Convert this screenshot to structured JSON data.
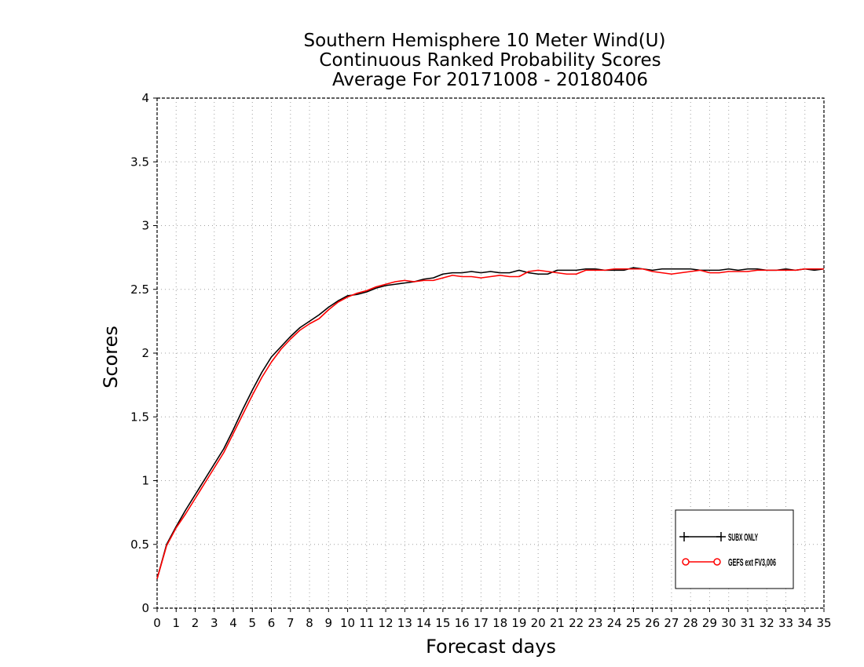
{
  "chart_data": {
    "type": "line",
    "title": [
      "Southern Hemisphere 10 Meter Wind(U)",
      "Continuous Ranked Probability Scores",
      "Average For 20171008 - 20180406"
    ],
    "xlabel": "Forecast days",
    "ylabel": "Scores",
    "xlim": [
      0,
      35
    ],
    "ylim": [
      0,
      4
    ],
    "xticks": [
      0,
      1,
      2,
      3,
      4,
      5,
      6,
      7,
      8,
      9,
      10,
      11,
      12,
      13,
      14,
      15,
      16,
      17,
      18,
      19,
      20,
      21,
      22,
      23,
      24,
      25,
      26,
      27,
      28,
      29,
      30,
      31,
      32,
      33,
      34,
      35
    ],
    "yticks": [
      0,
      0.5,
      1,
      1.5,
      2,
      2.5,
      3,
      3.5,
      4
    ],
    "grid": "dotted",
    "legend_position": "bottom-right",
    "x": [
      0,
      0.5,
      1,
      1.5,
      2,
      2.5,
      3,
      3.5,
      4,
      4.5,
      5,
      5.5,
      6,
      6.5,
      7,
      7.5,
      8,
      8.5,
      9,
      9.5,
      10,
      10.5,
      11,
      11.5,
      12,
      12.5,
      13,
      13.5,
      14,
      14.5,
      15,
      15.5,
      16,
      16.5,
      17,
      17.5,
      18,
      18.5,
      19,
      19.5,
      20,
      20.5,
      21,
      21.5,
      22,
      22.5,
      23,
      23.5,
      24,
      24.5,
      25,
      25.5,
      26,
      26.5,
      27,
      27.5,
      28,
      28.5,
      29,
      29.5,
      30,
      30.5,
      31,
      31.5,
      32,
      32.5,
      33,
      33.5,
      34,
      34.5,
      35
    ],
    "series": [
      {
        "name": "SUBX ONLY",
        "color": "#000000",
        "marker": "plus",
        "values": [
          0.23,
          0.5,
          0.64,
          0.77,
          0.89,
          1.01,
          1.13,
          1.25,
          1.4,
          1.56,
          1.71,
          1.85,
          1.97,
          2.05,
          2.13,
          2.2,
          2.25,
          2.3,
          2.36,
          2.41,
          2.45,
          2.46,
          2.48,
          2.51,
          2.53,
          2.54,
          2.55,
          2.56,
          2.58,
          2.59,
          2.62,
          2.63,
          2.63,
          2.64,
          2.63,
          2.64,
          2.63,
          2.63,
          2.65,
          2.63,
          2.62,
          2.62,
          2.65,
          2.65,
          2.65,
          2.66,
          2.66,
          2.65,
          2.65,
          2.65,
          2.67,
          2.66,
          2.65,
          2.66,
          2.66,
          2.66,
          2.66,
          2.65,
          2.65,
          2.65,
          2.66,
          2.65,
          2.66,
          2.66,
          2.65,
          2.65,
          2.66,
          2.65,
          2.66,
          2.65,
          2.66
        ]
      },
      {
        "name": "GEFS ext FV3,006",
        "color": "#ff0000",
        "marker": "circle",
        "values": [
          0.23,
          0.49,
          0.63,
          0.74,
          0.86,
          0.98,
          1.1,
          1.22,
          1.37,
          1.52,
          1.67,
          1.81,
          1.93,
          2.03,
          2.11,
          2.18,
          2.23,
          2.27,
          2.34,
          2.4,
          2.44,
          2.47,
          2.49,
          2.52,
          2.54,
          2.56,
          2.57,
          2.56,
          2.57,
          2.57,
          2.59,
          2.61,
          2.6,
          2.6,
          2.59,
          2.6,
          2.61,
          2.6,
          2.6,
          2.64,
          2.65,
          2.64,
          2.63,
          2.62,
          2.62,
          2.65,
          2.65,
          2.65,
          2.66,
          2.66,
          2.66,
          2.66,
          2.64,
          2.63,
          2.62,
          2.63,
          2.64,
          2.65,
          2.63,
          2.63,
          2.64,
          2.64,
          2.64,
          2.65,
          2.65,
          2.65,
          2.65,
          2.65,
          2.66,
          2.66,
          2.66
        ]
      }
    ]
  }
}
